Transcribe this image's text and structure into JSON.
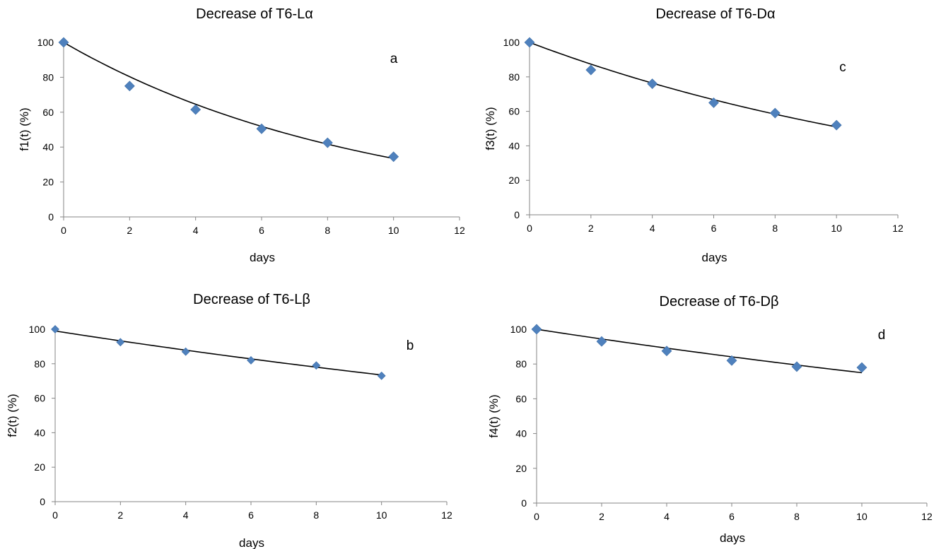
{
  "chart_data": [
    {
      "id": "a",
      "type": "scatter",
      "title": "Decrease of T6-Lα",
      "panel_letter": "a",
      "xlabel": "days",
      "ylabel": "f1(t) (%)",
      "xlim": [
        0,
        12
      ],
      "ylim": [
        0,
        100
      ],
      "xticks": [
        0,
        2,
        4,
        6,
        8,
        10,
        12
      ],
      "yticks": [
        0,
        20,
        40,
        60,
        80,
        100
      ],
      "grid": false,
      "marker_color": "#4F81BD",
      "marker": "diamond",
      "series": [
        {
          "x": [
            0,
            2,
            4,
            6,
            8,
            10
          ],
          "values": [
            100,
            75,
            61.5,
            50.5,
            42.5,
            34.5
          ]
        }
      ],
      "fit": {
        "type": "exponential",
        "x": [
          0,
          10
        ],
        "y": [
          100,
          33.5
        ]
      }
    },
    {
      "id": "c",
      "type": "scatter",
      "title": "Decrease of T6-Dα",
      "panel_letter": "c",
      "xlabel": "days",
      "ylabel": "f3(t) (%)",
      "xlim": [
        0,
        12
      ],
      "ylim": [
        0,
        100
      ],
      "xticks": [
        0,
        2,
        4,
        6,
        8,
        10,
        12
      ],
      "yticks": [
        0,
        20,
        40,
        60,
        80,
        100
      ],
      "grid": false,
      "marker_color": "#4F81BD",
      "marker": "diamond",
      "series": [
        {
          "x": [
            0,
            2,
            4,
            6,
            8,
            10
          ],
          "values": [
            100,
            84,
            76,
            65,
            59,
            52
          ]
        }
      ],
      "fit": {
        "type": "exponential",
        "x": [
          0,
          10
        ],
        "y": [
          100,
          51
        ]
      }
    },
    {
      "id": "b",
      "type": "scatter",
      "title": "Decrease of T6-Lβ",
      "panel_letter": "b",
      "xlabel": "days",
      "ylabel": "f2(t) (%)",
      "xlim": [
        0,
        12
      ],
      "ylim": [
        0,
        100
      ],
      "xticks": [
        0,
        2,
        4,
        6,
        8,
        10,
        12
      ],
      "yticks": [
        0,
        20,
        40,
        60,
        80,
        100
      ],
      "grid": false,
      "marker_color": "#4F81BD",
      "marker": "diamond",
      "series": [
        {
          "x": [
            0,
            2,
            4,
            6,
            8,
            10
          ],
          "values": [
            100,
            92.5,
            87,
            82,
            79,
            73
          ]
        }
      ],
      "fit": {
        "type": "exponential",
        "x": [
          0,
          10
        ],
        "y": [
          99,
          73.5
        ]
      }
    },
    {
      "id": "d",
      "type": "scatter",
      "title": "Decrease of T6-Dβ",
      "panel_letter": "d",
      "xlabel": "days",
      "ylabel": "f4(t) (%)",
      "xlim": [
        0,
        12
      ],
      "ylim": [
        0,
        100
      ],
      "xticks": [
        0,
        2,
        4,
        6,
        8,
        10,
        12
      ],
      "yticks": [
        0,
        20,
        40,
        60,
        80,
        100
      ],
      "grid": false,
      "marker_color": "#4F81BD",
      "marker": "diamond",
      "series": [
        {
          "x": [
            0,
            2,
            4,
            6,
            8,
            10
          ],
          "values": [
            100,
            93,
            87.5,
            82,
            78.5,
            78
          ]
        }
      ],
      "fit": {
        "type": "exponential",
        "x": [
          0,
          10
        ],
        "y": [
          100,
          75
        ]
      }
    }
  ]
}
